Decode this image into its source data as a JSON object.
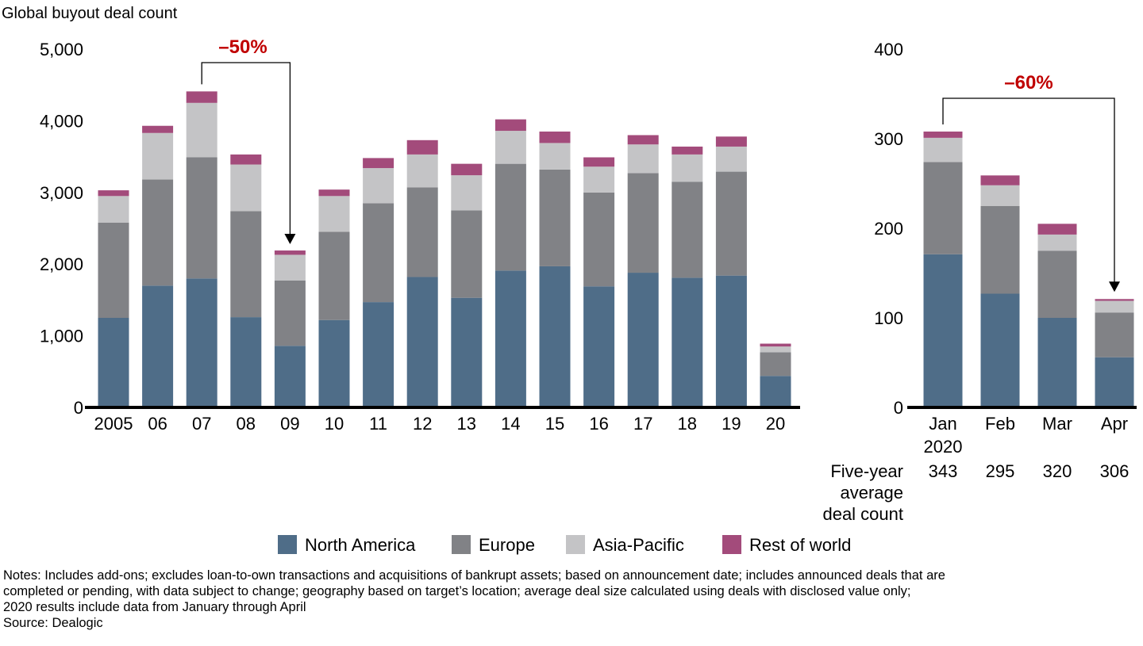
{
  "colors": {
    "north_america": "#4f6d88",
    "europe": "#818286",
    "asia_pacific": "#c4c4c6",
    "rest_of_world": "#a34b7b",
    "annotation": "#c00000"
  },
  "chart_data": [
    {
      "type": "bar",
      "stacked": true,
      "title": "Global buyout deal count",
      "categories": [
        "2005",
        "06",
        "07",
        "08",
        "09",
        "10",
        "11",
        "12",
        "13",
        "14",
        "15",
        "16",
        "17",
        "18",
        "19",
        "20"
      ],
      "ylim": [
        0,
        5000
      ],
      "yticks": [
        0,
        1000,
        2000,
        3000,
        4000,
        5000
      ],
      "ytick_labels": [
        "0",
        "1,000",
        "2,000",
        "3,000",
        "4,000",
        "5,000"
      ],
      "grid": false,
      "series": [
        {
          "name": "North America",
          "values": [
            1250,
            1700,
            1800,
            1260,
            860,
            1220,
            1470,
            1820,
            1530,
            1910,
            1970,
            1690,
            1880,
            1810,
            1840,
            440
          ]
        },
        {
          "name": "Europe",
          "values": [
            1330,
            1480,
            1690,
            1480,
            910,
            1230,
            1380,
            1250,
            1220,
            1490,
            1350,
            1310,
            1390,
            1340,
            1450,
            330
          ]
        },
        {
          "name": "Asia-Pacific",
          "values": [
            370,
            650,
            760,
            650,
            360,
            500,
            490,
            460,
            490,
            460,
            370,
            360,
            400,
            380,
            350,
            80
          ]
        },
        {
          "name": "Rest of world",
          "values": [
            80,
            100,
            160,
            140,
            60,
            90,
            140,
            200,
            160,
            160,
            160,
            130,
            130,
            110,
            140,
            40
          ]
        }
      ],
      "annotation": {
        "label": "–50%",
        "from": "07",
        "to": "09"
      }
    },
    {
      "type": "bar",
      "stacked": true,
      "categories": [
        "Jan\n2020",
        "Feb",
        "Mar",
        "Apr"
      ],
      "ylim": [
        0,
        400
      ],
      "yticks": [
        0,
        100,
        200,
        300,
        400
      ],
      "ytick_labels": [
        "0",
        "100",
        "200",
        "300",
        "400"
      ],
      "grid": false,
      "series": [
        {
          "name": "North America",
          "values": [
            171,
            127,
            100,
            56
          ]
        },
        {
          "name": "Europe",
          "values": [
            103,
            98,
            75,
            50
          ]
        },
        {
          "name": "Asia-Pacific",
          "values": [
            27,
            23,
            18,
            13
          ]
        },
        {
          "name": "Rest of world",
          "values": [
            7,
            11,
            12,
            2
          ]
        }
      ],
      "annotation": {
        "label": "–60%",
        "from": "Jan\n2020",
        "to": "Apr"
      },
      "five_year_average": {
        "label": "Five-year\naverage\ndeal count",
        "values": [
          "343",
          "295",
          "320",
          "306"
        ]
      }
    }
  ],
  "legend": {
    "placement": "bottom",
    "items": [
      "North America",
      "Europe",
      "Asia-Pacific",
      "Rest of world"
    ]
  },
  "notes": [
    "Notes: Includes add-ons; excludes loan-to-own transactions and acquisitions of bankrupt assets; based on announcement date; includes announced deals that are",
    "completed or pending, with data subject to change; geography based on target’s location; average deal size calculated using deals with disclosed value only;",
    "2020 results include data from January through April",
    "Source: Dealogic"
  ]
}
